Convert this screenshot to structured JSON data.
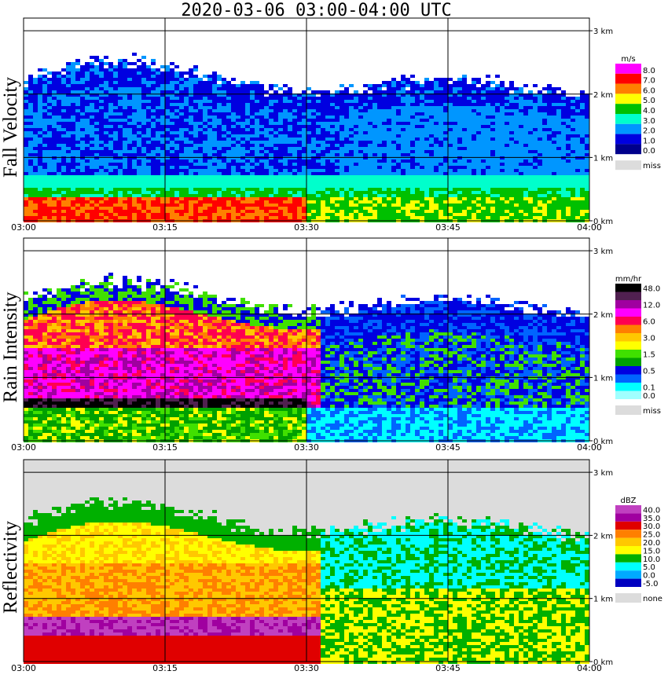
{
  "title": "2020-03-06   03:00-04:00 UTC",
  "x_ticks": [
    "03:00",
    "03:15",
    "03:30",
    "03:45",
    "04:00"
  ],
  "y_ticks": [
    "0 km",
    "1 km",
    "2 km",
    "3 km"
  ],
  "colors": {
    "grid": "#000000",
    "none_bg": "#dcdcdc",
    "frame": "#000000"
  },
  "chart_data": [
    {
      "type": "heatmap",
      "panel": "Fall Velocity",
      "ylabel": "Fall Velocity",
      "xlim": [
        "03:00",
        "04:00"
      ],
      "ylim_km": [
        0,
        3.2
      ],
      "grid": true,
      "legend": {
        "unit": "m/s",
        "entries": [
          {
            "label": "8.0",
            "color": "#ff00ff"
          },
          {
            "label": "7.0",
            "color": "#ff0000"
          },
          {
            "label": "6.0",
            "color": "#ff8000"
          },
          {
            "label": "5.0",
            "color": "#ffff00"
          },
          {
            "label": "4.0",
            "color": "#00c000"
          },
          {
            "label": "3.0",
            "color": "#00ffcc"
          },
          {
            "label": "2.0",
            "color": "#0096ff"
          },
          {
            "label": "1.0",
            "color": "#0000e0"
          },
          {
            "label": "0.0",
            "color": "#00008c"
          }
        ],
        "missing": {
          "label": "miss",
          "color": "#dcdcdc"
        }
      }
    },
    {
      "type": "heatmap",
      "panel": "Rain Intensity",
      "ylabel": "Rain Intensity",
      "xlim": [
        "03:00",
        "04:00"
      ],
      "ylim_km": [
        0,
        3.2
      ],
      "grid": true,
      "legend": {
        "unit": "mm/hr",
        "entries": [
          {
            "label": "48.0",
            "color": "#000000"
          },
          {
            "label": "",
            "color": "#502050"
          },
          {
            "label": "12.0",
            "color": "#a000a0"
          },
          {
            "label": "",
            "color": "#ff00ff"
          },
          {
            "label": "6.0",
            "color": "#ff0050"
          },
          {
            "label": "",
            "color": "#ff7f00"
          },
          {
            "label": "3.0",
            "color": "#ffc800"
          },
          {
            "label": "",
            "color": "#ffff00"
          },
          {
            "label": "1.5",
            "color": "#40e000"
          },
          {
            "label": "",
            "color": "#00a000"
          },
          {
            "label": "0.5",
            "color": "#0000e0"
          },
          {
            "label": "",
            "color": "#0064ff"
          },
          {
            "label": "0.1",
            "color": "#00ffff"
          },
          {
            "label": "0.0",
            "color": "#a0ffff"
          }
        ],
        "missing": {
          "label": "miss",
          "color": "#dcdcdc"
        }
      }
    },
    {
      "type": "heatmap",
      "panel": "Reflectivity",
      "ylabel": "Reflectivity",
      "xlim": [
        "03:00",
        "04:00"
      ],
      "ylim_km": [
        0,
        3.2
      ],
      "grid": true,
      "legend": {
        "unit": "dBZ",
        "entries": [
          {
            "label": "40.0",
            "color": "#c040c0"
          },
          {
            "label": "35.0",
            "color": "#a000a0"
          },
          {
            "label": "30.0",
            "color": "#e00000"
          },
          {
            "label": "25.0",
            "color": "#ff7f00"
          },
          {
            "label": "20.0",
            "color": "#ffc800"
          },
          {
            "label": "15.0",
            "color": "#ffff00"
          },
          {
            "label": "10.0",
            "color": "#00b000"
          },
          {
            "label": "5.0",
            "color": "#00ffff"
          },
          {
            "label": "0.0",
            "color": "#00aaff"
          },
          {
            "label": "-5.0",
            "color": "#0000c0"
          }
        ],
        "missing": {
          "label": "none",
          "color": "#dcdcdc"
        }
      }
    }
  ]
}
